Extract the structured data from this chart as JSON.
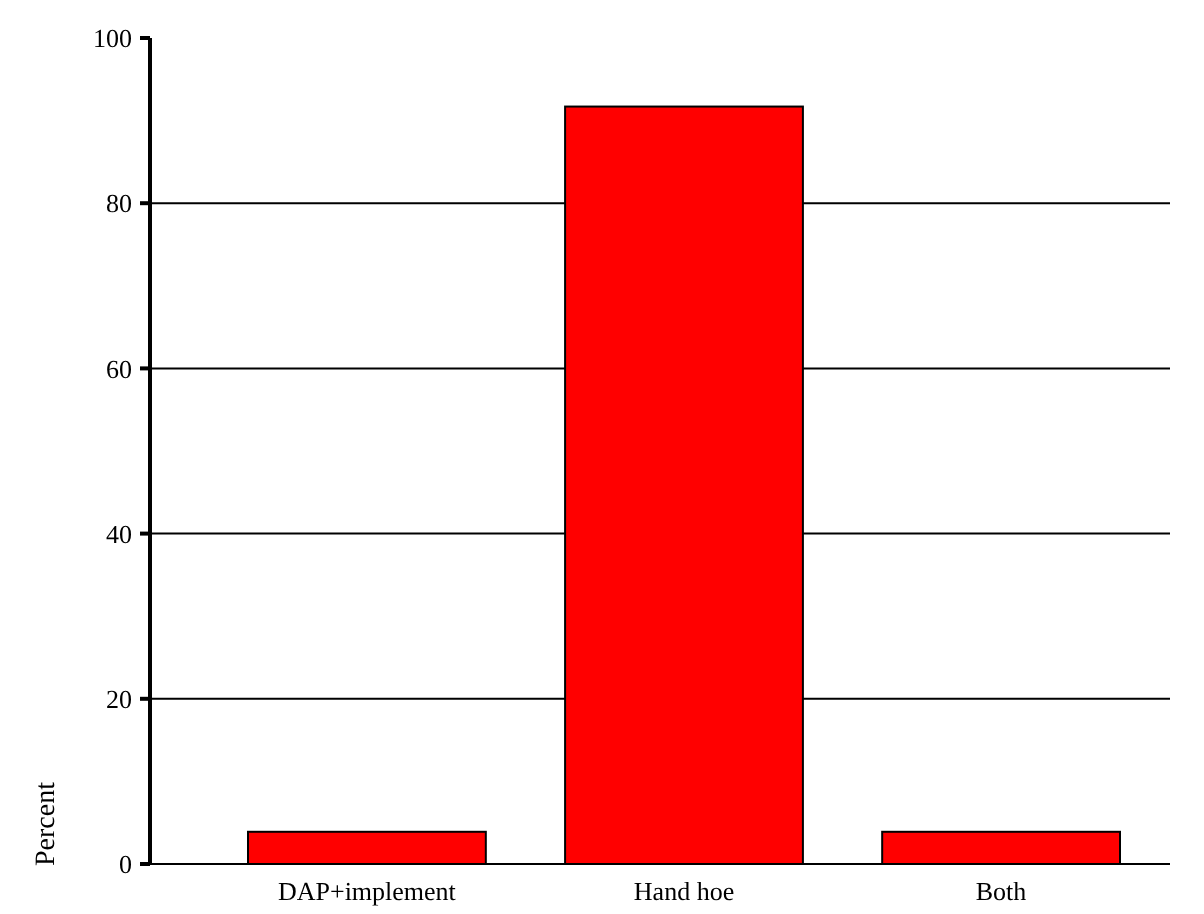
{
  "chart_data": {
    "type": "bar",
    "ylabel": "Percent",
    "categories": [
      "DAP+implement",
      "Hand hoe",
      "Both"
    ],
    "values": [
      3.9,
      91.7,
      3.9
    ],
    "color": "#ff0000",
    "ylim": [
      0,
      100
    ],
    "yticks": [
      0,
      20,
      40,
      60,
      80,
      100
    ],
    "grid": "y"
  }
}
